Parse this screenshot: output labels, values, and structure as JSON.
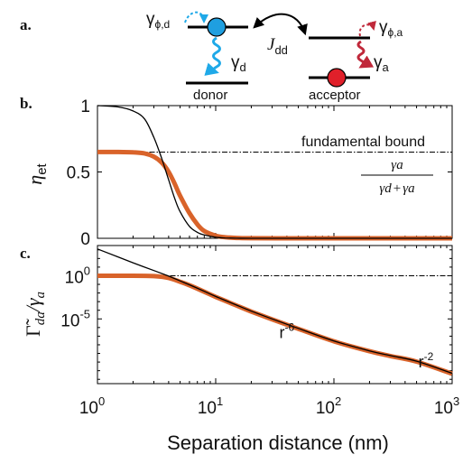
{
  "figure": {
    "panel_labels": [
      "a.",
      "b.",
      "c."
    ],
    "xlabel": "Separation distance (nm)",
    "colors": {
      "orange": "#d9632a",
      "black": "#000000",
      "donor_blue": "#1f9fe0",
      "acceptor_red": "#e0202a",
      "decay_blue": "#1fa9e8",
      "decay_red": "#c0283a"
    }
  },
  "schematic": {
    "gamma_phi_d": "γ",
    "gamma_phi_d_sub": "ϕ,d",
    "gamma_d": "γ",
    "gamma_d_sub": "d",
    "coupling_main": "J",
    "coupling_sub": "dd",
    "gamma_phi_a": "γ",
    "gamma_phi_a_sub": "ϕ,a",
    "gamma_a": "γ",
    "gamma_a_sub": "a",
    "donor_label": "donor",
    "acceptor_label": "acceptor"
  },
  "chart_data": [
    {
      "panel": "b.",
      "type": "line",
      "ylabel_main": "η",
      "ylabel_sub": "et",
      "xscale": "log",
      "xlim": [
        1,
        1000
      ],
      "ylim": [
        0,
        1
      ],
      "xticks": [
        {
          "value": 1,
          "base": "10",
          "exp": "0"
        },
        {
          "value": 10,
          "base": "10",
          "exp": "1"
        },
        {
          "value": 100,
          "base": "10",
          "exp": "2"
        },
        {
          "value": 1000,
          "base": "10",
          "exp": "3"
        }
      ],
      "yticks": [
        {
          "value": 0,
          "label": "0"
        },
        {
          "value": 0.5,
          "label": "0.5"
        },
        {
          "value": 1,
          "label": "1"
        }
      ],
      "reference_lines": [
        {
          "y": 0.65,
          "style": "dash-dot",
          "label": "fundamental bound"
        }
      ],
      "formula": {
        "num": "γa",
        "den_left": "γd",
        "den_op": "+",
        "den_right": "γa"
      },
      "series": [
        {
          "style": "thick-orange",
          "x": [
            1,
            1.5,
            2,
            2.5,
            3,
            3.5,
            4,
            4.5,
            5,
            6,
            7,
            8,
            10,
            12,
            15,
            20,
            50,
            100,
            1000
          ],
          "y": [
            0.65,
            0.65,
            0.648,
            0.64,
            0.615,
            0.57,
            0.5,
            0.41,
            0.32,
            0.19,
            0.105,
            0.055,
            0.02,
            0.008,
            0.003,
            0.001,
            0,
            0,
            0
          ]
        },
        {
          "style": "thin-black",
          "x": [
            1,
            1.5,
            2,
            2.5,
            3,
            3.5,
            4,
            4.5,
            5,
            6,
            7,
            8,
            10,
            12,
            15,
            20,
            50,
            100,
            1000
          ],
          "y": [
            1.0,
            0.99,
            0.96,
            0.9,
            0.76,
            0.6,
            0.44,
            0.3,
            0.2,
            0.09,
            0.045,
            0.025,
            0.008,
            0.003,
            0.001,
            0,
            0,
            0,
            0
          ]
        }
      ]
    },
    {
      "panel": "c.",
      "type": "line",
      "ylabel_main": "Γ̃",
      "ylabel_sub": "da",
      "ylabel_tail": "/γ",
      "ylabel_tail_sub": "a",
      "xscale": "log",
      "yscale": "log",
      "xlim": [
        1,
        1000
      ],
      "ylim_log10": [
        -12.5,
        3.5
      ],
      "yticks": [
        {
          "log10": 0,
          "base": "10",
          "exp": "0"
        },
        {
          "log10": -5,
          "base": "10",
          "exp": "-5"
        }
      ],
      "reference_lines": [
        {
          "log10_y": 0,
          "style": "dash-dot"
        }
      ],
      "annotations": [
        {
          "text_base": "r",
          "text_exp": "-6",
          "x": 40,
          "log10_y": -7.2
        },
        {
          "text_base": "r",
          "text_exp": "-2",
          "x": 600,
          "log10_y": -10.6
        }
      ],
      "series": [
        {
          "style": "thick-orange",
          "x": [
            1,
            2,
            3,
            4,
            5,
            6,
            8,
            10,
            15,
            20,
            30,
            50,
            100,
            200,
            300,
            500,
            1000
          ],
          "log10_y": [
            0,
            0,
            -0.05,
            -0.25,
            -0.7,
            -1.1,
            -1.85,
            -2.45,
            -3.45,
            -4.15,
            -5.05,
            -6.15,
            -7.6,
            -8.75,
            -9.3,
            -9.95,
            -11.35
          ]
        },
        {
          "style": "thin-black",
          "x": [
            1,
            2,
            3,
            4,
            5,
            6,
            8,
            10,
            15,
            20,
            30,
            50,
            100,
            200,
            300,
            500,
            1000
          ],
          "log10_y": [
            3.1,
            1.5,
            0.6,
            -0.05,
            -0.6,
            -1.05,
            -1.8,
            -2.4,
            -3.4,
            -4.1,
            -5.0,
            -6.1,
            -7.55,
            -8.7,
            -9.25,
            -9.9,
            -11.3
          ]
        }
      ]
    }
  ]
}
